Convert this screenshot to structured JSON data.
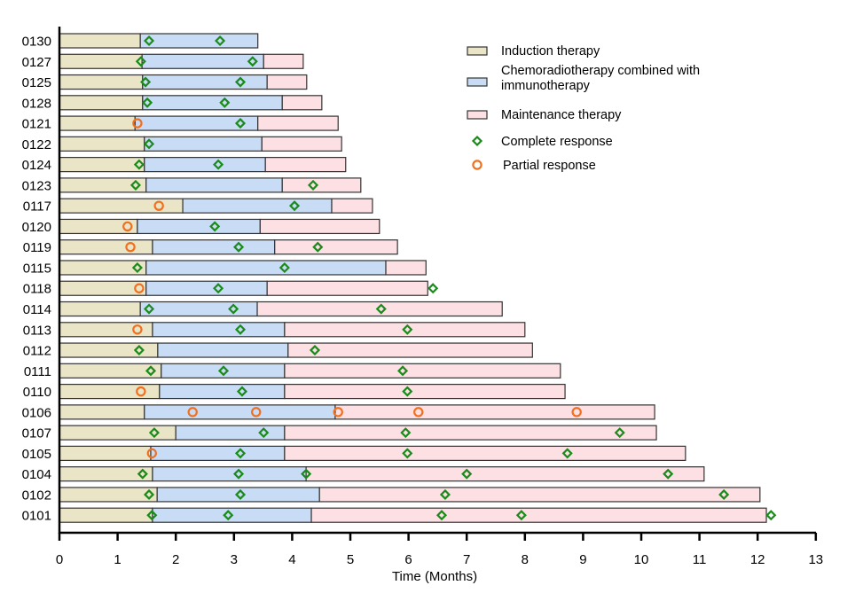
{
  "chart_data": {
    "type": "bar",
    "subtype": "swimmer-plot",
    "title": "",
    "xlabel": "Time (Months)",
    "ylabel": "",
    "xlim": [
      0,
      13
    ],
    "xticks": [
      0,
      1,
      2,
      3,
      4,
      5,
      6,
      7,
      8,
      9,
      10,
      11,
      12,
      13
    ],
    "grid": false,
    "legend_position": "top-right",
    "colors": {
      "induction": "#ebe5c8",
      "chemo": "#c8dcf5",
      "maintenance": "#fde0e3",
      "complete_response": "#1a8a1a",
      "partial_response": "#f07020",
      "bar_stroke": "#333333"
    },
    "legend": [
      {
        "key": "induction",
        "label": "Induction therapy",
        "marker": "rect"
      },
      {
        "key": "chemo",
        "label_lines": [
          "Chemoradiotherapy combined with",
          "immunotherapy"
        ],
        "marker": "rect"
      },
      {
        "key": "maintenance",
        "label": "Maintenance therapy",
        "marker": "rect"
      },
      {
        "key": "complete_response",
        "label": "Complete response",
        "marker": "diamond"
      },
      {
        "key": "partial_response",
        "label": "Partial response",
        "marker": "circle"
      }
    ],
    "patients": [
      {
        "id": "0130",
        "induction_end": 1.39,
        "chemo_end": 3.41,
        "maintenance_end": null,
        "cr": [
          1.54,
          2.76
        ],
        "pr": []
      },
      {
        "id": "0127",
        "induction_end": 1.42,
        "chemo_end": 3.51,
        "maintenance_end": 4.19,
        "cr": [
          1.4,
          3.32
        ],
        "pr": []
      },
      {
        "id": "0125",
        "induction_end": 1.43,
        "chemo_end": 3.57,
        "maintenance_end": 4.25,
        "cr": [
          1.48,
          3.11
        ],
        "pr": []
      },
      {
        "id": "0128",
        "induction_end": 1.43,
        "chemo_end": 3.83,
        "maintenance_end": 4.51,
        "cr": [
          1.51,
          2.84
        ],
        "pr": []
      },
      {
        "id": "0121",
        "induction_end": 1.3,
        "chemo_end": 3.41,
        "maintenance_end": 4.79,
        "cr": [
          3.11
        ],
        "pr": [
          1.34
        ]
      },
      {
        "id": "0122",
        "induction_end": 1.46,
        "chemo_end": 3.48,
        "maintenance_end": 4.85,
        "cr": [
          1.54
        ],
        "pr": []
      },
      {
        "id": "0124",
        "induction_end": 1.46,
        "chemo_end": 3.54,
        "maintenance_end": 4.92,
        "cr": [
          1.37,
          2.73
        ],
        "pr": []
      },
      {
        "id": "0123",
        "induction_end": 1.49,
        "chemo_end": 3.83,
        "maintenance_end": 5.18,
        "cr": [
          1.31,
          4.36
        ],
        "pr": []
      },
      {
        "id": "0117",
        "induction_end": 2.12,
        "chemo_end": 4.68,
        "maintenance_end": 5.38,
        "cr": [
          4.04
        ],
        "pr": [
          1.71
        ]
      },
      {
        "id": "0120",
        "induction_end": 1.34,
        "chemo_end": 3.45,
        "maintenance_end": 5.5,
        "cr": [
          2.67
        ],
        "pr": [
          1.17
        ]
      },
      {
        "id": "0119",
        "induction_end": 1.6,
        "chemo_end": 3.7,
        "maintenance_end": 5.81,
        "cr": [
          3.08,
          4.44
        ],
        "pr": [
          1.22
        ]
      },
      {
        "id": "0115",
        "induction_end": 1.49,
        "chemo_end": 5.61,
        "maintenance_end": 6.3,
        "cr": [
          1.34,
          3.87
        ],
        "pr": []
      },
      {
        "id": "0118",
        "induction_end": 1.49,
        "chemo_end": 3.57,
        "maintenance_end": 6.33,
        "cr": [
          2.73,
          6.42
        ],
        "pr": [
          1.37
        ]
      },
      {
        "id": "0114",
        "induction_end": 1.39,
        "chemo_end": 3.4,
        "maintenance_end": 7.61,
        "cr": [
          1.54,
          2.99,
          5.53
        ],
        "pr": []
      },
      {
        "id": "0113",
        "induction_end": 1.6,
        "chemo_end": 3.87,
        "maintenance_end": 8.0,
        "cr": [
          3.11,
          5.98
        ],
        "pr": [
          1.34
        ]
      },
      {
        "id": "0112",
        "induction_end": 1.69,
        "chemo_end": 3.93,
        "maintenance_end": 8.13,
        "cr": [
          1.37,
          4.39
        ],
        "pr": []
      },
      {
        "id": "0111",
        "induction_end": 1.75,
        "chemo_end": 3.87,
        "maintenance_end": 8.61,
        "cr": [
          1.57,
          2.82,
          5.9
        ],
        "pr": []
      },
      {
        "id": "0110",
        "induction_end": 1.72,
        "chemo_end": 3.87,
        "maintenance_end": 8.69,
        "cr": [
          3.14,
          5.98
        ],
        "pr": [
          1.4
        ]
      },
      {
        "id": "0106",
        "induction_end": 1.46,
        "chemo_end": 4.74,
        "maintenance_end": 10.23,
        "cr": [],
        "pr": [
          2.29,
          3.38,
          4.79,
          6.17,
          8.89
        ]
      },
      {
        "id": "0107",
        "induction_end": 2.0,
        "chemo_end": 3.87,
        "maintenance_end": 10.26,
        "cr": [
          1.63,
          3.51,
          5.95,
          9.63
        ],
        "pr": []
      },
      {
        "id": "0105",
        "induction_end": 1.57,
        "chemo_end": 3.87,
        "maintenance_end": 10.76,
        "cr": [
          3.11,
          5.98,
          8.73
        ],
        "pr": [
          1.59
        ]
      },
      {
        "id": "0104",
        "induction_end": 1.6,
        "chemo_end": 4.24,
        "maintenance_end": 11.08,
        "cr": [
          1.43,
          3.08,
          4.24,
          7.0,
          10.46
        ],
        "pr": []
      },
      {
        "id": "0102",
        "induction_end": 1.68,
        "chemo_end": 4.47,
        "maintenance_end": 12.04,
        "cr": [
          1.54,
          3.11,
          6.63,
          11.42
        ],
        "pr": []
      },
      {
        "id": "0101",
        "induction_end": 1.6,
        "chemo_end": 4.33,
        "maintenance_end": 12.15,
        "cr": [
          1.59,
          2.9,
          6.57,
          7.94,
          12.23
        ],
        "pr": []
      }
    ]
  }
}
